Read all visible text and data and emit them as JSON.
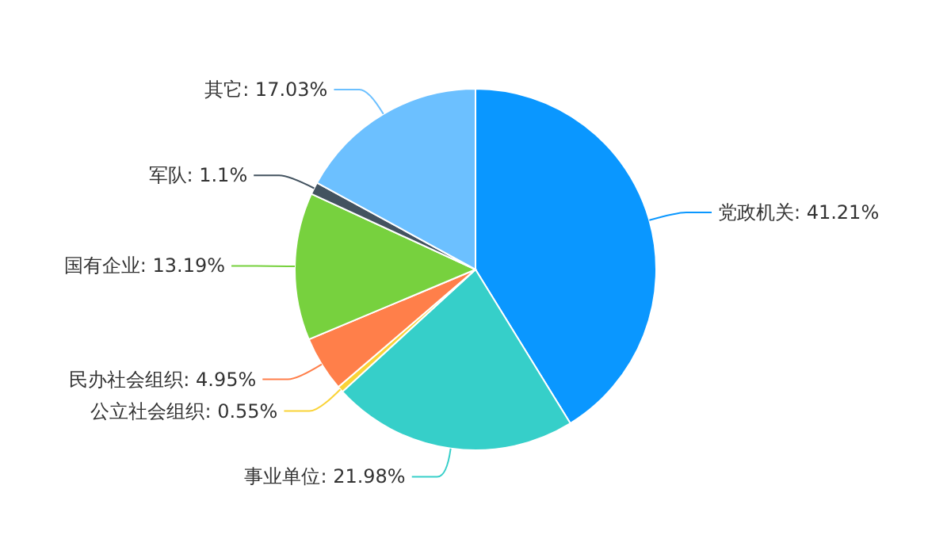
{
  "chart_data": {
    "type": "pie",
    "categories": [
      "党政机关",
      "事业单位",
      "公立社会组织",
      "民办社会组织",
      "国有企业",
      "军队",
      "其它"
    ],
    "values": [
      41.21,
      21.98,
      0.55,
      4.95,
      13.19,
      1.1,
      17.03
    ],
    "value_labels": [
      "41.21%",
      "21.98%",
      "0.55%",
      "4.95%",
      "13.19%",
      "1.1%",
      "17.03%"
    ],
    "colors": [
      "#0a97ff",
      "#36cfc9",
      "#fad337",
      "#ff7f4a",
      "#77d13e",
      "#435360",
      "#6cc0ff"
    ],
    "legend": false
  }
}
